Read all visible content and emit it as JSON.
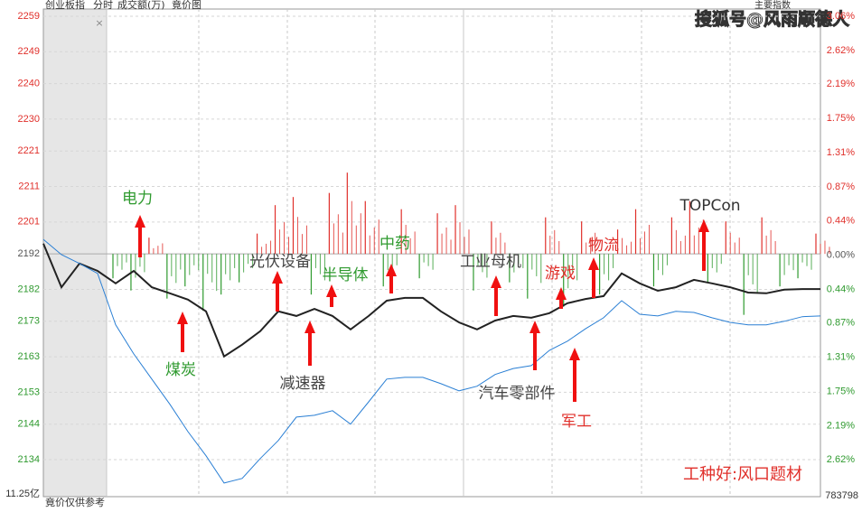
{
  "chart_data": {
    "type": "line",
    "header": [
      "创业板指",
      "分时",
      "成交额(万)",
      "竟价图"
    ],
    "watermark": "搜狐号@风雨顺德人",
    "panel_label": "主要指数",
    "close_icon": "×",
    "auction_note": "竟价仅供参考",
    "volume_label": "11.25亿",
    "right_bottom_label": "783798",
    "up_color": "#e0302b",
    "down_color": "#2f9a2f",
    "neutral_color": "#555555",
    "ylim": [
      2134,
      2259
    ],
    "yticks": [
      2259,
      2249,
      2240,
      2230,
      2221,
      2211,
      2201,
      2192,
      2182,
      2173,
      2163,
      2153,
      2144,
      2134
    ],
    "y2lim": [
      -2.62,
      3.06
    ],
    "y2ticks": [
      {
        "value": 3.06,
        "label": "3.06%"
      },
      {
        "value": 2.62,
        "label": "2.62%"
      },
      {
        "value": 2.19,
        "label": "2.19%"
      },
      {
        "value": 1.75,
        "label": "1.75%"
      },
      {
        "value": 1.31,
        "label": "1.31%"
      },
      {
        "value": 0.87,
        "label": "0.87%"
      },
      {
        "value": 0.44,
        "label": "0.44%"
      },
      {
        "value": 0,
        "label": "0.00%"
      },
      {
        "value": -0.44,
        "label": "0.44%"
      },
      {
        "value": -0.87,
        "label": "0.87%"
      },
      {
        "value": -1.31,
        "label": "1.31%"
      },
      {
        "value": -1.75,
        "label": "1.75%"
      },
      {
        "value": -2.19,
        "label": "2.19%"
      },
      {
        "value": -2.62,
        "label": "2.62%"
      }
    ],
    "grid": true,
    "series": [
      {
        "color": "#222222",
        "values": [
          2194.9,
          2182.6,
          2189.3,
          2187.2,
          2183.7,
          2187.2,
          2182.6,
          2180.9,
          2179.1,
          2175.8,
          2163.1,
          2166.4,
          2170.2,
          2175.8,
          2174.5,
          2176.5,
          2174.5,
          2170.7,
          2174.5,
          2178.8,
          2179.6,
          2179.6,
          2175.8,
          2172.7,
          2170.7,
          2173.2,
          2174.5,
          2174.0,
          2175.3,
          2178.1,
          2179.3,
          2180.1,
          2186.5,
          2183.7,
          2181.6,
          2182.6,
          2184.7,
          2183.7,
          2182.6,
          2181.1,
          2180.9,
          2181.9,
          2182.1,
          2182.1
        ]
      },
      {
        "color": "#2a7fd4",
        "values": [
          2196.1,
          2191.8,
          2189.3,
          2186.5,
          2172.0,
          2163.8,
          2156.7,
          2149.6,
          2141.9,
          2135.1,
          2127.4,
          2128.7,
          2134.3,
          2139.4,
          2146.0,
          2146.5,
          2147.8,
          2144.0,
          2150.3,
          2156.7,
          2157.2,
          2157.2,
          2155.4,
          2153.4,
          2154.7,
          2158.0,
          2159.7,
          2160.5,
          2164.8,
          2167.4,
          2170.9,
          2174.0,
          2178.8,
          2175.0,
          2174.5,
          2175.8,
          2175.5,
          2174.0,
          2172.7,
          2172.0,
          2172.0,
          2173.0,
          2174.3,
          2174.5
        ]
      }
    ],
    "volume": [
      -30,
      -45,
      20,
      -55,
      -40,
      -70,
      -50,
      -35,
      25,
      60,
      70,
      -50,
      75,
      100,
      65,
      -40,
      55,
      -30,
      50,
      60,
      -45,
      40,
      -35,
      -55,
      45,
      -65,
      40,
      -50,
      30,
      55,
      -40,
      45,
      65,
      -35,
      40,
      -75,
      45,
      -40,
      -30,
      25
    ],
    "annotations": [
      {
        "text": "电力",
        "color": "#2f9a2f"
      },
      {
        "text": "煤炭",
        "color": "#2f9a2f"
      },
      {
        "text": "光伏设备",
        "color": "#444444"
      },
      {
        "text": "减速器",
        "color": "#444444"
      },
      {
        "text": "半导体",
        "color": "#2f9a2f"
      },
      {
        "text": "中药",
        "color": "#2f9a2f"
      },
      {
        "text": "工业母机",
        "color": "#444444"
      },
      {
        "text": "汽车零部件",
        "color": "#444444"
      },
      {
        "text": "游戏",
        "color": "#e0302b"
      },
      {
        "text": "军工",
        "color": "#e0302b"
      },
      {
        "text": "物流",
        "color": "#e0302b"
      },
      {
        "text": "TOPCon",
        "color": "#333333"
      },
      {
        "text": "工种好:风口题材",
        "color": "#e0302b"
      }
    ]
  }
}
